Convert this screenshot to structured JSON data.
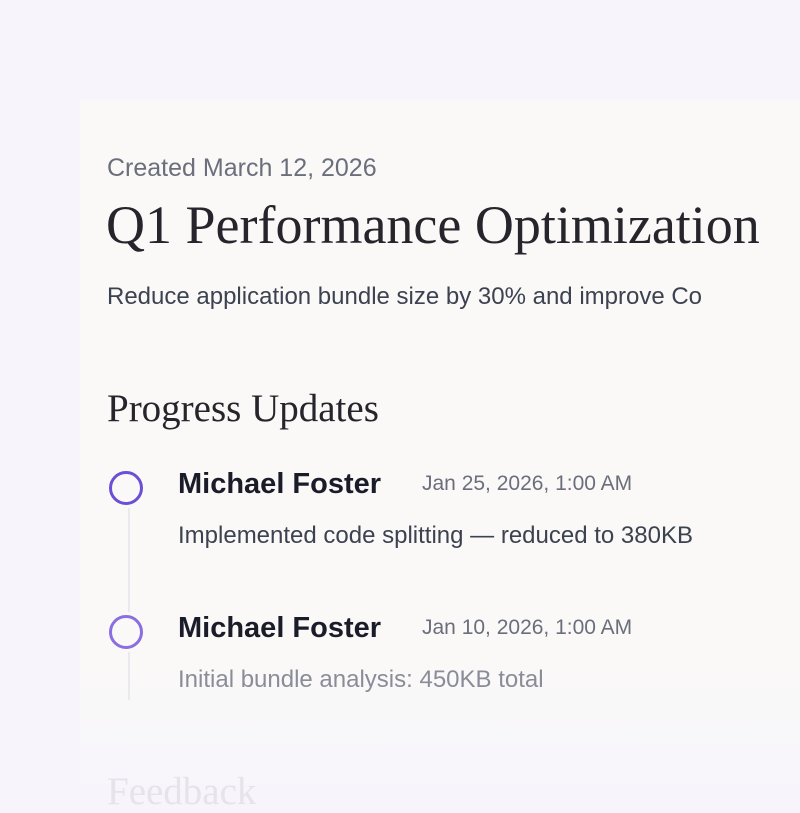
{
  "header": {
    "created": "Created March 12, 2026",
    "title": "Q1 Performance Optimization",
    "description": "Reduce application bundle size by 30% and improve Co"
  },
  "progress": {
    "heading": "Progress Updates",
    "updates": [
      {
        "author": "Michael Foster",
        "date": "Jan 25, 2026, 1:00 AM",
        "text": "Implemented code splitting — reduced to 380KB"
      },
      {
        "author": "Michael Foster",
        "date": "Jan 10, 2026, 1:00 AM",
        "text": "Initial bundle analysis: 450KB total"
      }
    ]
  },
  "feedback": {
    "heading": "Feedback"
  }
}
